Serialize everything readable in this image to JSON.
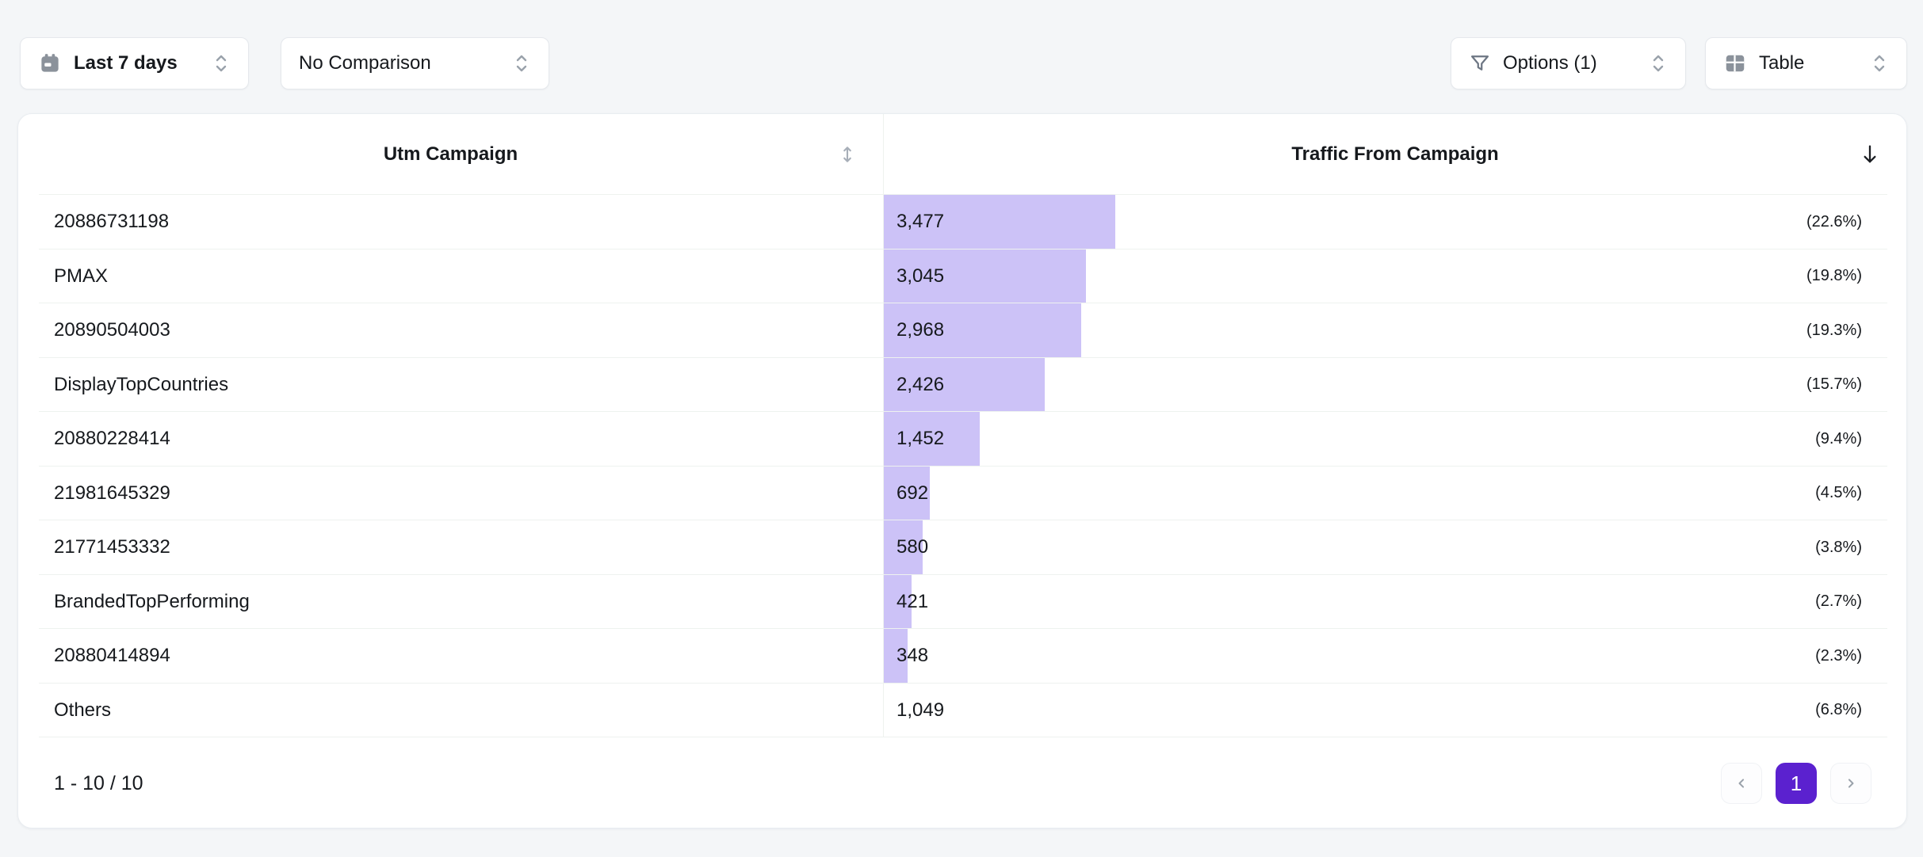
{
  "toolbar": {
    "date_range_label": "Last 7 days",
    "comparison_label": "No Comparison",
    "options_label": "Options (1)",
    "view_label": "Table"
  },
  "icons": {
    "calendar": "calendar-icon",
    "chevron_up_down": "unfold-chevrons-icon",
    "filter": "funnel-icon",
    "table_view": "table-grid-icon",
    "sort_unsorted": "arrows-up-down-icon",
    "sort_descending": "arrow-down-icon",
    "prev_page": "chevron-left-icon",
    "next_page": "chevron-right-icon"
  },
  "table": {
    "columns": [
      {
        "label": "Utm Campaign",
        "sort": "unsorted"
      },
      {
        "label": "Traffic From Campaign",
        "sort": "desc"
      }
    ],
    "rows": [
      {
        "campaign": "20886731198",
        "value": "3,477",
        "pct": "(22.6%)",
        "bar_pct": 22.6
      },
      {
        "campaign": "PMAX",
        "value": "3,045",
        "pct": "(19.8%)",
        "bar_pct": 19.8
      },
      {
        "campaign": "20890504003",
        "value": "2,968",
        "pct": "(19.3%)",
        "bar_pct": 19.3
      },
      {
        "campaign": "DisplayTopCountries",
        "value": "2,426",
        "pct": "(15.7%)",
        "bar_pct": 15.7
      },
      {
        "campaign": "20880228414",
        "value": "1,452",
        "pct": "(9.4%)",
        "bar_pct": 9.4
      },
      {
        "campaign": "21981645329",
        "value": "692",
        "pct": "(4.5%)",
        "bar_pct": 4.5
      },
      {
        "campaign": "21771453332",
        "value": "580",
        "pct": "(3.8%)",
        "bar_pct": 3.8
      },
      {
        "campaign": "BrandedTopPerforming",
        "value": "421",
        "pct": "(2.7%)",
        "bar_pct": 2.7
      },
      {
        "campaign": "20880414894",
        "value": "348",
        "pct": "(2.3%)",
        "bar_pct": 2.3
      },
      {
        "campaign": "Others",
        "value": "1,049",
        "pct": "(6.8%)",
        "bar_pct": null
      }
    ]
  },
  "pagination": {
    "range_label": "1 - 10 / 10",
    "current_page": "1"
  },
  "colors": {
    "bar": "#ccc2f7",
    "active_page": "#5b21cf",
    "background": "#f4f6f8"
  }
}
